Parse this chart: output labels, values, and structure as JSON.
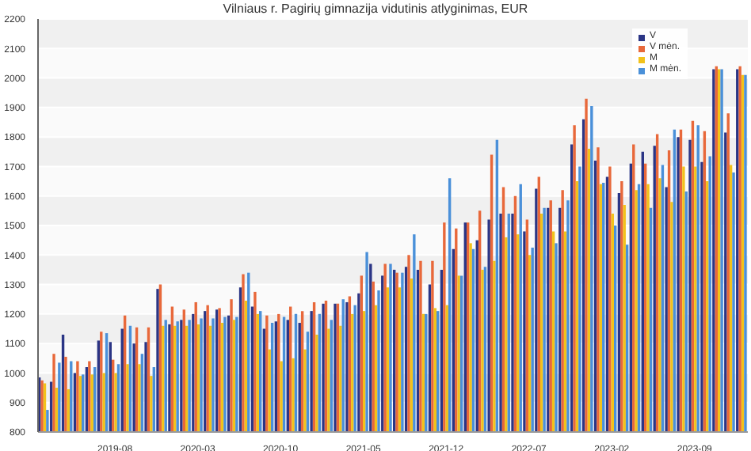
{
  "chart_data": {
    "type": "bar",
    "title": "Vilniaus r. Pagirių gimnazija vidutinis atlyginimas, EUR",
    "categories": [
      null,
      null,
      null,
      null,
      null,
      null,
      "2019-08",
      null,
      null,
      null,
      null,
      null,
      null,
      "2020-03",
      null,
      null,
      null,
      null,
      null,
      null,
      "2020-10",
      null,
      null,
      null,
      null,
      null,
      null,
      "2021-05",
      null,
      null,
      null,
      null,
      null,
      null,
      "2021-12",
      null,
      null,
      null,
      null,
      null,
      null,
      "2022-07",
      null,
      null,
      null,
      null,
      null,
      null,
      "2023-02",
      null,
      null,
      null,
      null,
      null,
      null,
      "2023-09",
      null,
      null,
      null,
      null
    ],
    "series": [
      {
        "name": "V",
        "color": "#2b3585",
        "values": [
          985,
          970,
          1130,
          1000,
          1020,
          1110,
          1105,
          1150,
          1100,
          1105,
          1285,
          1165,
          1180,
          1200,
          1210,
          1215,
          1195,
          1290,
          1225,
          1150,
          1175,
          1180,
          1170,
          1210,
          1235,
          1235,
          1240,
          1270,
          1370,
          1330,
          1350,
          1360,
          1350,
          1300,
          1350,
          1420,
          1510,
          1450,
          1520,
          1540,
          1540,
          1480,
          1625,
          1560,
          1560,
          1775,
          1860,
          1720,
          1665,
          1610,
          1710,
          1750,
          1770,
          1630,
          1800,
          1790,
          1715,
          2030,
          1815,
          2030
        ]
      },
      {
        "name": "V mėn.",
        "color": "#e8683a",
        "values": [
          975,
          1065,
          1055,
          1040,
          1040,
          1140,
          1045,
          1195,
          1155,
          1155,
          1300,
          1225,
          1215,
          1240,
          1230,
          1220,
          1250,
          1335,
          1275,
          1195,
          1200,
          1225,
          1210,
          1240,
          1245,
          1235,
          1260,
          1330,
          1310,
          1370,
          1340,
          1400,
          1380,
          1380,
          1510,
          1490,
          1510,
          1550,
          1740,
          1630,
          1600,
          1520,
          1665,
          1585,
          1620,
          1840,
          1930,
          1765,
          1700,
          1650,
          1775,
          1710,
          1810,
          1755,
          1825,
          1855,
          1820,
          2040,
          1880,
          2040
        ]
      },
      {
        "name": "M",
        "color": "#f2c21b",
        "values": [
          965,
          950,
          945,
          990,
          995,
          1000,
          1000,
          1030,
          1030,
          990,
          1160,
          1160,
          1160,
          1165,
          1160,
          1170,
          1180,
          1245,
          1200,
          1080,
          1040,
          1050,
          1080,
          1130,
          1150,
          1160,
          1200,
          1210,
          1230,
          1290,
          1290,
          1320,
          1200,
          1220,
          1230,
          1330,
          1440,
          1350,
          1380,
          1460,
          1470,
          1400,
          1540,
          1480,
          1480,
          1650,
          1760,
          1640,
          1540,
          1570,
          1620,
          1640,
          1660,
          1580,
          1700,
          1700,
          1650,
          2030,
          1705,
          2010
        ]
      },
      {
        "name": "M mėn.",
        "color": "#4a90d9",
        "values": [
          875,
          1035,
          1040,
          995,
          1020,
          1135,
          1030,
          1160,
          1065,
          1020,
          1180,
          1175,
          1180,
          1185,
          1185,
          1190,
          1190,
          1340,
          1210,
          1170,
          1190,
          1200,
          1140,
          1200,
          1180,
          1250,
          1230,
          1410,
          1280,
          1370,
          1340,
          1470,
          1200,
          1210,
          1660,
          1330,
          1420,
          1360,
          1790,
          1540,
          1640,
          1425,
          1560,
          1440,
          1585,
          1700,
          1905,
          1645,
          1500,
          1435,
          1640,
          1560,
          1705,
          1825,
          1615,
          1840,
          1735,
          2030,
          1680,
          2010
        ]
      }
    ],
    "ylim": [
      800,
      2200
    ],
    "yticks": [
      800,
      900,
      1000,
      1100,
      1200,
      1300,
      1400,
      1500,
      1600,
      1700,
      1800,
      1900,
      2000,
      2100,
      2200
    ],
    "grid": "y",
    "legend": "top right"
  }
}
